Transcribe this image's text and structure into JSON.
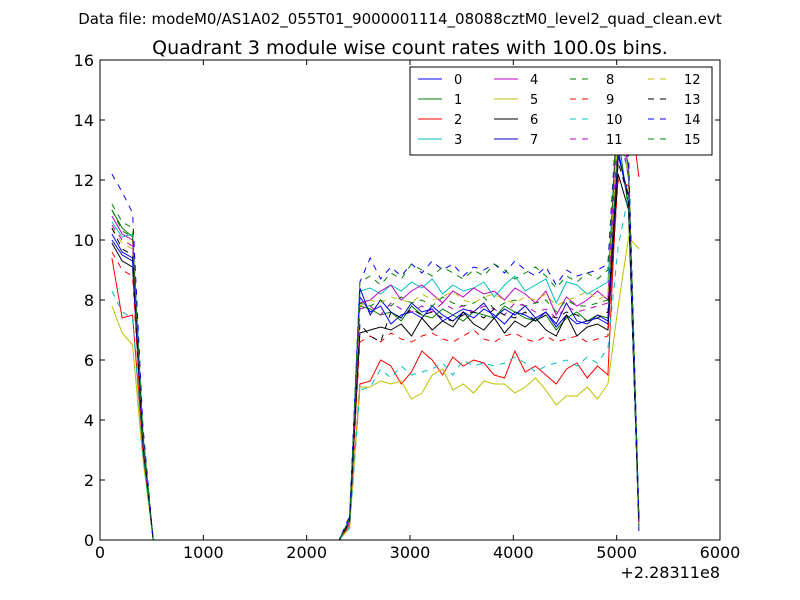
{
  "header": {
    "suptitle": "Data file: modeM0/AS1A02_055T01_9000001114_08088cztM0_level2_quad_clean.evt",
    "title": "Quadrant 3 module wise count rates with 100.0s bins."
  },
  "chart_data": {
    "type": "line",
    "title": "Quadrant 3 module wise count rates with 100.0s bins.",
    "xlabel": "",
    "ylabel": "",
    "x_offset_label": "+2.28311e8",
    "xlim": [
      0,
      6000
    ],
    "ylim": [
      0,
      16
    ],
    "xticks": [
      0,
      1000,
      2000,
      3000,
      4000,
      5000,
      6000
    ],
    "yticks": [
      0,
      2,
      4,
      6,
      8,
      10,
      12,
      14,
      16
    ],
    "grid": false,
    "legend_position": "top-right",
    "legend_columns": 4,
    "x": [
      115,
      215,
      315,
      415,
      515,
      615,
      715,
      815,
      915,
      1015,
      1115,
      1215,
      1315,
      1415,
      1515,
      1615,
      1715,
      1815,
      1915,
      2015,
      2115,
      2215,
      2315,
      2415,
      2515,
      2615,
      2715,
      2815,
      2915,
      3015,
      3115,
      3215,
      3315,
      3415,
      3515,
      3615,
      3715,
      3815,
      3915,
      4015,
      4115,
      4215,
      4315,
      4415,
      4515,
      4615,
      4715,
      4815,
      4915,
      5015,
      5115,
      5215
    ],
    "series": [
      {
        "name": "0",
        "color": "#0000ff",
        "dash": "solid",
        "values": [
          10.2,
          9.6,
          9.4,
          3.0,
          0,
          0,
          0,
          0,
          0,
          0,
          0,
          0,
          0,
          0,
          0,
          0,
          0,
          0,
          0,
          0,
          0,
          0,
          0,
          0.6,
          8.1,
          7.6,
          7.8,
          7.2,
          7.5,
          7.6,
          7.4,
          7.8,
          7.5,
          7.3,
          7.6,
          7.4,
          7.7,
          7.5,
          7.2,
          7.6,
          7.5,
          7.3,
          7.6,
          7.1,
          7.5,
          7.2,
          7.3,
          7.4,
          7.2,
          13.0,
          11.2,
          0.5
        ]
      },
      {
        "name": "1",
        "color": "#008000",
        "dash": "solid",
        "values": [
          11.0,
          10.4,
          10.1,
          3.5,
          0,
          0,
          0,
          0,
          0,
          0,
          0,
          0,
          0,
          0,
          0,
          0,
          0,
          0,
          0,
          0,
          0,
          0,
          0,
          0.7,
          7.8,
          7.7,
          7.5,
          7.6,
          7.3,
          7.8,
          7.5,
          7.4,
          7.7,
          7.5,
          7.3,
          7.6,
          7.5,
          7.4,
          7.8,
          7.6,
          7.4,
          7.3,
          7.5,
          7.0,
          7.4,
          7.6,
          7.3,
          7.5,
          7.4,
          13.5,
          11.0,
          0.6
        ]
      },
      {
        "name": "2",
        "color": "#ff0000",
        "dash": "solid",
        "values": [
          9.4,
          7.4,
          7.5,
          3.0,
          0,
          0,
          0,
          0,
          0,
          0,
          0,
          0,
          0,
          0,
          0,
          0,
          0,
          0,
          0,
          0,
          0,
          0,
          0,
          0.5,
          5.2,
          5.3,
          6.0,
          5.8,
          5.2,
          5.6,
          6.3,
          6.0,
          5.5,
          6.1,
          5.8,
          6.0,
          5.9,
          5.5,
          5.4,
          6.3,
          5.6,
          5.8,
          5.5,
          5.2,
          5.7,
          5.9,
          5.4,
          5.8,
          5.5,
          12.8,
          14.8,
          12.1
        ]
      },
      {
        "name": "3",
        "color": "#00bfbf",
        "dash": "solid",
        "values": [
          10.6,
          10.1,
          10.2,
          3.4,
          0,
          0,
          0,
          0,
          0,
          0,
          0,
          0,
          0,
          0,
          0,
          0,
          0,
          0,
          0,
          0,
          0,
          0,
          0,
          0.7,
          8.3,
          8.4,
          8.2,
          8.5,
          8.3,
          8.6,
          8.4,
          8.7,
          8.2,
          8.5,
          8.3,
          8.4,
          8.6,
          8.1,
          8.5,
          8.8,
          8.3,
          8.5,
          8.7,
          7.9,
          8.6,
          8.5,
          8.2,
          8.4,
          8.6,
          14.4,
          12.0,
          0.8
        ]
      },
      {
        "name": "4",
        "color": "#bf00bf",
        "dash": "solid",
        "values": [
          10.8,
          10.2,
          10.0,
          3.4,
          0,
          0,
          0,
          0,
          0,
          0,
          0,
          0,
          0,
          0,
          0,
          0,
          0,
          0,
          0,
          0,
          0,
          0,
          0,
          0.7,
          7.9,
          8.0,
          8.3,
          8.5,
          8.0,
          8.3,
          8.5,
          8.2,
          7.9,
          8.3,
          8.1,
          8.4,
          8.2,
          8.3,
          8.0,
          8.4,
          8.2,
          7.9,
          8.3,
          7.5,
          8.1,
          7.8,
          8.0,
          8.3,
          8.0,
          14.8,
          12.3,
          0.7
        ]
      },
      {
        "name": "5",
        "color": "#bfbf00",
        "dash": "solid",
        "values": [
          7.8,
          6.9,
          6.5,
          2.7,
          0,
          0,
          0,
          0,
          0,
          0,
          0,
          0,
          0,
          0,
          0,
          0,
          0,
          0,
          0,
          0,
          0,
          0,
          0,
          0.4,
          5.1,
          5.1,
          5.3,
          5.2,
          5.3,
          4.7,
          4.9,
          5.5,
          5.7,
          5.0,
          5.2,
          4.9,
          5.3,
          5.2,
          5.2,
          4.9,
          5.1,
          5.4,
          5.0,
          4.5,
          4.8,
          4.8,
          5.1,
          4.7,
          5.2,
          7.8,
          10.1,
          9.7
        ]
      },
      {
        "name": "6",
        "color": "#000000",
        "dash": "solid",
        "values": [
          9.9,
          9.3,
          9.1,
          3.1,
          0,
          0,
          0,
          0,
          0,
          0,
          0,
          0,
          0,
          0,
          0,
          0,
          0,
          0,
          0,
          0,
          0,
          0,
          0,
          0.6,
          6.9,
          7.0,
          7.1,
          7.0,
          7.2,
          6.8,
          7.4,
          7.0,
          7.3,
          7.1,
          7.6,
          7.2,
          7.0,
          7.4,
          6.9,
          7.3,
          7.1,
          7.4,
          7.0,
          6.8,
          7.5,
          6.8,
          7.1,
          7.2,
          7.0,
          12.2,
          11.0,
          0.6
        ]
      },
      {
        "name": "7",
        "color": "#0000cc",
        "dash": "solid",
        "values": [
          10.0,
          9.5,
          9.3,
          3.2,
          0,
          0,
          0,
          0,
          0,
          0,
          0,
          0,
          0,
          0,
          0,
          0,
          0,
          0,
          0,
          0,
          0,
          0,
          0,
          0.6,
          8.4,
          7.5,
          8.0,
          7.6,
          7.4,
          7.9,
          7.6,
          7.7,
          7.3,
          7.5,
          7.7,
          7.6,
          7.9,
          7.4,
          7.7,
          7.5,
          7.8,
          7.4,
          7.6,
          7.2,
          7.9,
          7.3,
          7.2,
          7.5,
          7.3,
          12.8,
          11.5,
          0.3
        ]
      },
      {
        "name": "8",
        "color": "#008000",
        "dash": "dashed",
        "values": [
          11.2,
          10.6,
          10.4,
          3.6,
          0,
          0,
          0,
          0,
          0,
          0,
          0,
          0,
          0,
          0,
          0,
          0,
          0,
          0,
          0,
          0,
          0,
          0,
          0,
          0.7,
          7.9,
          7.8,
          8.0,
          7.8,
          8.1,
          7.9,
          8.0,
          7.8,
          8.1,
          7.9,
          7.8,
          7.9,
          8.1,
          7.7,
          7.9,
          8.0,
          7.8,
          7.9,
          8.0,
          7.6,
          8.0,
          7.8,
          7.8,
          7.9,
          8.0,
          15.2,
          12.8,
          0.8
        ]
      },
      {
        "name": "9",
        "color": "#ff0000",
        "dash": "dashed",
        "values": [
          9.6,
          9.0,
          8.8,
          3.0,
          0,
          0,
          0,
          0,
          0,
          0,
          0,
          0,
          0,
          0,
          0,
          0,
          0,
          0,
          0,
          0,
          0,
          0,
          0,
          0.5,
          6.6,
          6.8,
          6.6,
          6.9,
          6.7,
          6.6,
          6.8,
          6.9,
          6.7,
          6.6,
          6.8,
          7.0,
          6.7,
          6.6,
          6.8,
          6.9,
          6.7,
          6.6,
          6.8,
          6.6,
          6.7,
          6.8,
          6.6,
          6.7,
          6.8,
          12.0,
          11.8,
          0.5
        ]
      },
      {
        "name": "10",
        "color": "#00bfbf",
        "dash": "dashed",
        "values": [
          8.3,
          7.6,
          7.4,
          2.8,
          0,
          0,
          0,
          0,
          0,
          0,
          0,
          0,
          0,
          0,
          0,
          0,
          0,
          0,
          0,
          0,
          0,
          0,
          0,
          0.4,
          5.0,
          5.1,
          5.7,
          5.4,
          5.8,
          5.5,
          5.6,
          5.7,
          5.9,
          5.5,
          6.0,
          5.8,
          5.9,
          5.8,
          5.9,
          6.1,
          5.9,
          5.6,
          5.8,
          5.9,
          6.0,
          5.8,
          6.1,
          5.9,
          6.4,
          9.8,
          11.5,
          0.4
        ]
      },
      {
        "name": "11",
        "color": "#bf00bf",
        "dash": "dashed",
        "values": [
          10.5,
          10.0,
          9.8,
          3.3,
          0,
          0,
          0,
          0,
          0,
          0,
          0,
          0,
          0,
          0,
          0,
          0,
          0,
          0,
          0,
          0,
          0,
          0,
          0,
          0.6,
          7.7,
          7.8,
          7.5,
          7.9,
          7.7,
          7.6,
          7.8,
          7.6,
          7.9,
          7.7,
          7.8,
          7.6,
          7.8,
          7.7,
          7.5,
          7.9,
          7.8,
          7.6,
          7.7,
          7.4,
          7.8,
          7.6,
          7.7,
          7.8,
          7.9,
          13.8,
          12.1,
          0.6
        ]
      },
      {
        "name": "12",
        "color": "#bfbf00",
        "dash": "dashed",
        "values": [
          10.4,
          9.9,
          9.7,
          3.3,
          0,
          0,
          0,
          0,
          0,
          0,
          0,
          0,
          0,
          0,
          0,
          0,
          0,
          0,
          0,
          0,
          0,
          0,
          0,
          0.6,
          7.8,
          8.0,
          7.9,
          8.1,
          8.0,
          7.9,
          8.2,
          8.0,
          8.1,
          8.3,
          8.0,
          7.9,
          8.1,
          8.2,
          8.0,
          7.9,
          8.1,
          8.0,
          8.2,
          7.8,
          8.0,
          8.1,
          8.3,
          8.0,
          8.2,
          13.6,
          12.2,
          0.5
        ]
      },
      {
        "name": "13",
        "color": "#000000",
        "dash": "dashed",
        "values": [
          10.4,
          9.7,
          9.5,
          3.2,
          0,
          0,
          0,
          0,
          0,
          0,
          0,
          0,
          0,
          0,
          0,
          0,
          0,
          0,
          0,
          0,
          0,
          0,
          0,
          0.6,
          7.2,
          6.8,
          6.6,
          7.6,
          7.4,
          7.7,
          7.5,
          7.6,
          7.4,
          7.3,
          7.5,
          7.6,
          7.4,
          7.7,
          7.5,
          7.4,
          7.6,
          7.3,
          7.5,
          7.4,
          7.6,
          7.5,
          7.3,
          7.4,
          7.6,
          12.6,
          11.4,
          0.5
        ]
      },
      {
        "name": "14",
        "color": "#0000ff",
        "dash": "dashed",
        "values": [
          12.2,
          11.6,
          10.9,
          3.8,
          0,
          0,
          0,
          0,
          0,
          0,
          0,
          0,
          0,
          0,
          0,
          0,
          0,
          0,
          0,
          0,
          0,
          0,
          0,
          0.8,
          8.6,
          9.4,
          8.7,
          9.1,
          8.8,
          9.2,
          8.9,
          9.3,
          9.0,
          9.2,
          8.8,
          9.1,
          9.0,
          9.2,
          8.9,
          9.3,
          9.0,
          8.8,
          9.1,
          8.5,
          9.0,
          8.8,
          8.9,
          9.0,
          9.2,
          14.9,
          12.6,
          0.8
        ]
      },
      {
        "name": "15",
        "color": "#008000",
        "dash": "dashed",
        "values": [
          11.0,
          10.3,
          10.1,
          3.5,
          0,
          0,
          0,
          0,
          0,
          0,
          0,
          0,
          0,
          0,
          0,
          0,
          0,
          0,
          0,
          0,
          0,
          0,
          0,
          0.7,
          8.6,
          8.8,
          8.5,
          8.9,
          8.7,
          9.2,
          9.0,
          8.8,
          9.1,
          8.9,
          8.7,
          9.0,
          8.8,
          9.2,
          9.0,
          8.7,
          8.9,
          9.1,
          8.8,
          8.4,
          8.8,
          8.6,
          8.9,
          8.7,
          9.0,
          14.6,
          12.4,
          0.7
        ]
      }
    ]
  }
}
